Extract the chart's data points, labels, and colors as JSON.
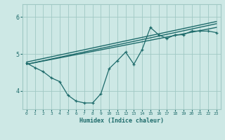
{
  "xlabel": "Humidex (Indice chaleur)",
  "bg_color": "#cde8e5",
  "line_color": "#1e6b6b",
  "grid_color": "#a0c8c4",
  "xlim": [
    -0.5,
    23.5
  ],
  "ylim": [
    3.5,
    6.35
  ],
  "yticks": [
    4,
    5,
    6
  ],
  "xticks": [
    0,
    1,
    2,
    3,
    4,
    5,
    6,
    7,
    8,
    9,
    10,
    11,
    12,
    13,
    14,
    15,
    16,
    17,
    18,
    19,
    20,
    21,
    22,
    23
  ],
  "curve1_x": [
    0,
    1,
    2,
    3,
    4,
    5,
    6,
    7,
    8,
    9,
    10,
    11,
    12,
    13,
    14,
    15,
    16,
    17,
    18,
    19,
    20,
    21,
    22,
    23
  ],
  "curve1_y": [
    4.75,
    4.63,
    4.52,
    4.35,
    4.25,
    3.88,
    3.72,
    3.67,
    3.67,
    3.92,
    4.6,
    4.82,
    5.05,
    4.72,
    5.12,
    5.72,
    5.52,
    5.42,
    5.52,
    5.52,
    5.62,
    5.62,
    5.62,
    5.58
  ],
  "line1_x": [
    0,
    23
  ],
  "line1_y": [
    4.72,
    5.72
  ],
  "line2_x": [
    0,
    23
  ],
  "line2_y": [
    4.78,
    5.88
  ],
  "line3_x": [
    0,
    23
  ],
  "line3_y": [
    4.72,
    5.82
  ]
}
